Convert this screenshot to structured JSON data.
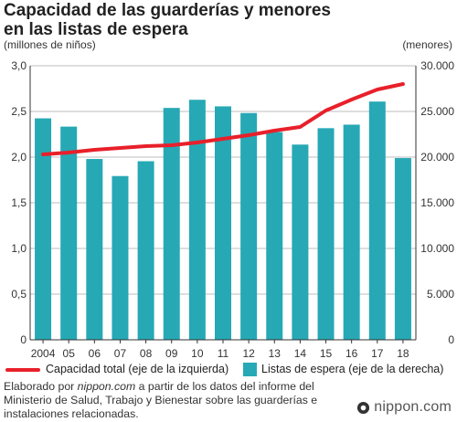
{
  "title": "Capacidad de las guarderías y menores",
  "subtitle": "en las listas de espera",
  "brand": "nippon.com",
  "source": {
    "prefix": "Elaborado por ",
    "site": "nippon.com",
    "suffix": " a partir de los datos del informe del Ministerio de Salud, Trabajo y Bienestar sobre las guarderías e instalaciones relacionadas."
  },
  "colors": {
    "bar": "#27a8b5",
    "line": "#e8202a",
    "grid": "#bdbdbd",
    "axis": "#333333"
  },
  "chart_data": {
    "type": "bar",
    "categories": [
      "2004",
      "05",
      "06",
      "07",
      "08",
      "09",
      "10",
      "11",
      "12",
      "13",
      "14",
      "15",
      "16",
      "17",
      "18"
    ],
    "series": [
      {
        "name": "Listas de espera (eje de la derecha)",
        "type": "bar",
        "axis": "right",
        "values": [
          24245,
          23338,
          19794,
          17926,
          19550,
          25384,
          26275,
          25556,
          24825,
          22741,
          21371,
          23167,
          23553,
          26081,
          19895
        ]
      },
      {
        "name": "Capacidad total (eje de la izquierda)",
        "type": "line",
        "axis": "left",
        "values": [
          2.03,
          2.05,
          2.08,
          2.1,
          2.12,
          2.13,
          2.16,
          2.2,
          2.24,
          2.29,
          2.33,
          2.51,
          2.63,
          2.74,
          2.8
        ]
      }
    ],
    "ylabel_left": "(millones de niños)",
    "ylabel_right": "(menores)",
    "ylim_left": [
      0,
      3.0
    ],
    "ylim_right": [
      0,
      30000
    ],
    "yticks_left": [
      "0",
      "0,5",
      "1,0",
      "1,5",
      "2,0",
      "2,5",
      "3,0"
    ],
    "yticks_right": [
      "0",
      "5.000",
      "10.000",
      "15.000",
      "20.000",
      "25.000",
      "30.000"
    ],
    "grid": true,
    "legend_position": "bottom"
  }
}
